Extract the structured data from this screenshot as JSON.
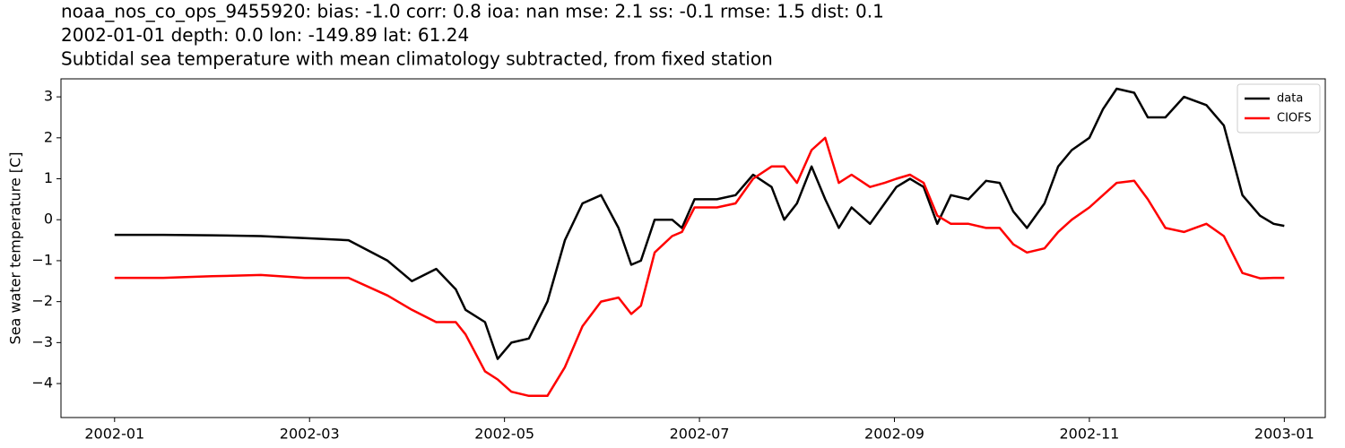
{
  "chart_data": {
    "type": "line",
    "title": [
      "noaa_nos_co_ops_9455920: bias: -1.0  corr: 0.8  ioa: nan  mse: 2.1  ss: -0.1  rmse: 1.5  dist: 0.1",
      "2002-01-01 depth: 0.0 lon: -149.89 lat: 61.24",
      "Subtidal sea temperature with mean climatology subtracted, from fixed station"
    ],
    "ylabel": "Sea water temperature [C]",
    "x": [
      0,
      0.5,
      1,
      1.5,
      1.95,
      2.4,
      2.8,
      3.05,
      3.3,
      3.5,
      3.6,
      3.8,
      3.93,
      4.07,
      4.25,
      4.44,
      4.62,
      4.8,
      4.99,
      5.17,
      5.3,
      5.4,
      5.54,
      5.72,
      5.82,
      5.95,
      6.18,
      6.37,
      6.55,
      6.74,
      6.87,
      7.0,
      7.15,
      7.29,
      7.43,
      7.56,
      7.75,
      7.9,
      8.02,
      8.16,
      8.3,
      8.44,
      8.58,
      8.76,
      8.94,
      9.08,
      9.22,
      9.36,
      9.54,
      9.68,
      9.82,
      10.0,
      10.14,
      10.28,
      10.46,
      10.6,
      10.78,
      10.97,
      11.2,
      11.38,
      11.57,
      11.75,
      11.89,
      12.0
    ],
    "series": [
      {
        "name": "data",
        "color": "#000000",
        "values": [
          -0.37,
          -0.37,
          -0.38,
          -0.4,
          -0.45,
          -0.5,
          -1.0,
          -1.5,
          -1.2,
          -1.7,
          -2.2,
          -2.5,
          -3.4,
          -3.0,
          -2.9,
          -2.0,
          -0.5,
          0.4,
          0.6,
          -0.2,
          -1.1,
          -1.0,
          0.0,
          0.0,
          -0.2,
          0.5,
          0.5,
          0.6,
          1.1,
          0.8,
          0.0,
          0.4,
          1.3,
          0.5,
          -0.2,
          0.3,
          -0.1,
          0.4,
          0.8,
          1.0,
          0.8,
          -0.1,
          0.6,
          0.5,
          0.95,
          0.9,
          0.2,
          -0.2,
          0.4,
          1.3,
          1.7,
          2.0,
          2.7,
          3.2,
          3.1,
          2.5,
          2.5,
          3.0,
          2.8,
          2.3,
          0.6,
          0.1,
          -0.1,
          -0.15
        ]
      },
      {
        "name": "CIOFS",
        "color": "#ff0000",
        "values": [
          -1.42,
          -1.42,
          -1.38,
          -1.35,
          -1.42,
          -1.42,
          -1.85,
          -2.2,
          -2.5,
          -2.5,
          -2.8,
          -3.7,
          -3.9,
          -4.2,
          -4.3,
          -4.3,
          -3.6,
          -2.6,
          -2.0,
          -1.9,
          -2.3,
          -2.1,
          -0.8,
          -0.4,
          -0.3,
          0.3,
          0.3,
          0.4,
          1.0,
          1.3,
          1.3,
          0.9,
          1.7,
          2.0,
          0.9,
          1.1,
          0.8,
          0.9,
          1.0,
          1.1,
          0.9,
          0.1,
          -0.1,
          -0.1,
          -0.2,
          -0.2,
          -0.6,
          -0.8,
          -0.7,
          -0.3,
          0.0,
          0.3,
          0.6,
          0.9,
          0.95,
          0.5,
          -0.2,
          -0.3,
          -0.1,
          -0.4,
          -1.3,
          -1.43,
          -1.42,
          -1.42
        ]
      }
    ],
    "xlim": [
      -0.55,
      12.42
    ],
    "xticks": [
      {
        "value": 0,
        "label": "2002-01"
      },
      {
        "value": 2,
        "label": "2002-03"
      },
      {
        "value": 4,
        "label": "2002-05"
      },
      {
        "value": 6,
        "label": "2002-07"
      },
      {
        "value": 8,
        "label": "2002-09"
      },
      {
        "value": 10,
        "label": "2002-11"
      },
      {
        "value": 12,
        "label": "2003-01"
      }
    ],
    "ylim": [
      -4.83,
      3.44
    ],
    "yticks": [
      {
        "value": -4,
        "label": "−4"
      },
      {
        "value": -3,
        "label": "−3"
      },
      {
        "value": -2,
        "label": "−2"
      },
      {
        "value": -1,
        "label": "−1"
      },
      0,
      1,
      2,
      3
    ],
    "legend": "upper right"
  }
}
